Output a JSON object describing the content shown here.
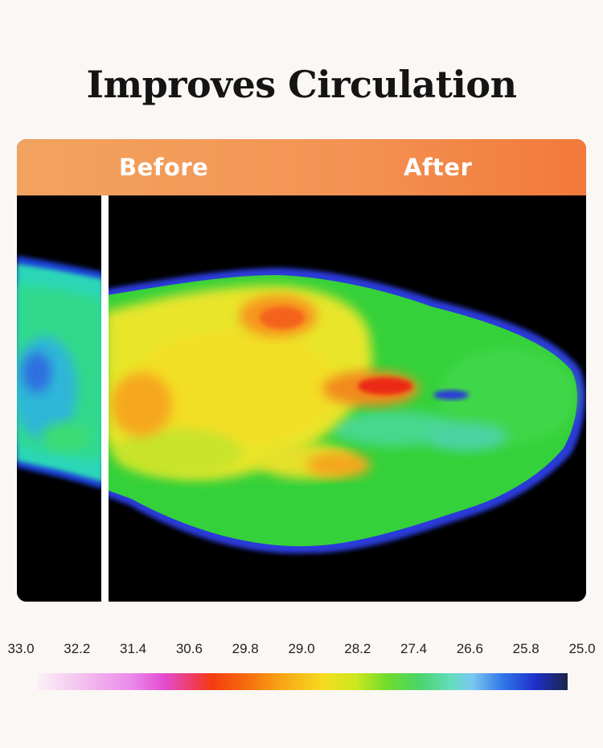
{
  "title": "Improves Circulation",
  "comparison": {
    "before_label": "Before",
    "after_label": "After"
  },
  "temperature_scale": {
    "ticks": [
      "33.0",
      "32.2",
      "31.4",
      "30.6",
      "29.8",
      "29.0",
      "28.2",
      "27.4",
      "26.6",
      "25.8",
      "25.0"
    ]
  },
  "colors": {
    "header_start": "#f2a35f",
    "header_end": "#f2793a",
    "background": "#fbf7f4"
  }
}
